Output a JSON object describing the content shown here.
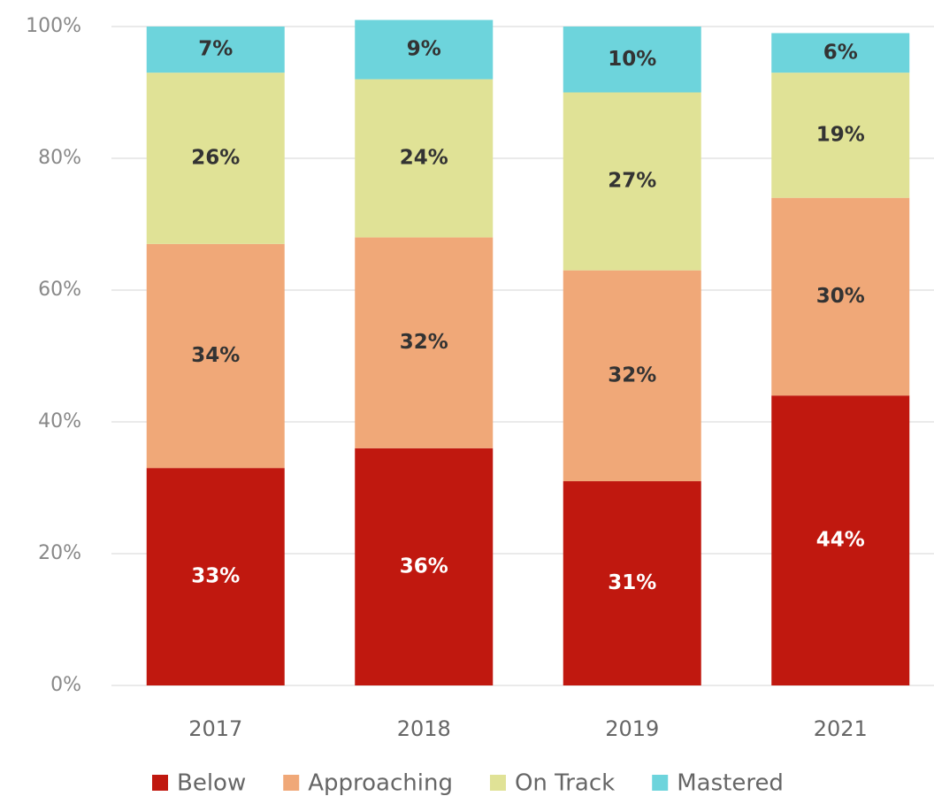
{
  "chart_data": {
    "type": "stacked_bar",
    "categories": [
      "2017",
      "2018",
      "2019",
      "2021"
    ],
    "series": [
      {
        "name": "Below",
        "color": "#c0180f",
        "values": [
          33,
          36,
          31,
          44
        ],
        "value_labels": [
          "33%",
          "36%",
          "31%",
          "44%"
        ]
      },
      {
        "name": "Approaching",
        "color": "#f0a878",
        "values": [
          34,
          32,
          32,
          30
        ],
        "value_labels": [
          "34%",
          "32%",
          "32%",
          "30%"
        ]
      },
      {
        "name": "On Track",
        "color": "#e0e296",
        "values": [
          26,
          24,
          27,
          19
        ],
        "value_labels": [
          "26%",
          "24%",
          "27%",
          "19%"
        ]
      },
      {
        "name": "Mastered",
        "color": "#6dd4dc",
        "values": [
          7,
          9,
          10,
          6
        ],
        "value_labels": [
          "7%",
          "9%",
          "10%",
          "6%"
        ]
      }
    ],
    "ylim": [
      0,
      100
    ],
    "yticks": [
      {
        "value": 0,
        "label": "0%"
      },
      {
        "value": 20,
        "label": "20%"
      },
      {
        "value": 40,
        "label": "40%"
      },
      {
        "value": 60,
        "label": "60%"
      },
      {
        "value": 80,
        "label": "80%"
      },
      {
        "value": 100,
        "label": "100%"
      }
    ],
    "grid": true,
    "legend": "bottom"
  }
}
